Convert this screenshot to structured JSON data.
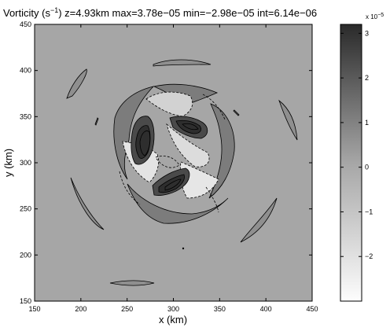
{
  "chart_data": {
    "type": "heatmap",
    "title_prefix": "Vorticity (s",
    "title_exp": "−1",
    "title_suffix": ") z=4.93km max=3.78e−05 min=−2.98e−05 int=6.14e−06",
    "xlabel": "x (km)",
    "ylabel": "y (km)",
    "xlim": [
      150,
      450
    ],
    "ylim": [
      150,
      450
    ],
    "xticks": [
      150,
      200,
      250,
      300,
      350,
      400,
      450
    ],
    "yticks": [
      150,
      200,
      250,
      300,
      350,
      400,
      450
    ],
    "colorbar": {
      "range": [
        -3.0,
        3.2
      ],
      "ticks": [
        -2,
        -1,
        0,
        1,
        2,
        3
      ],
      "exponent_label": "x 10",
      "exponent_value": "−5"
    },
    "grid": false
  }
}
